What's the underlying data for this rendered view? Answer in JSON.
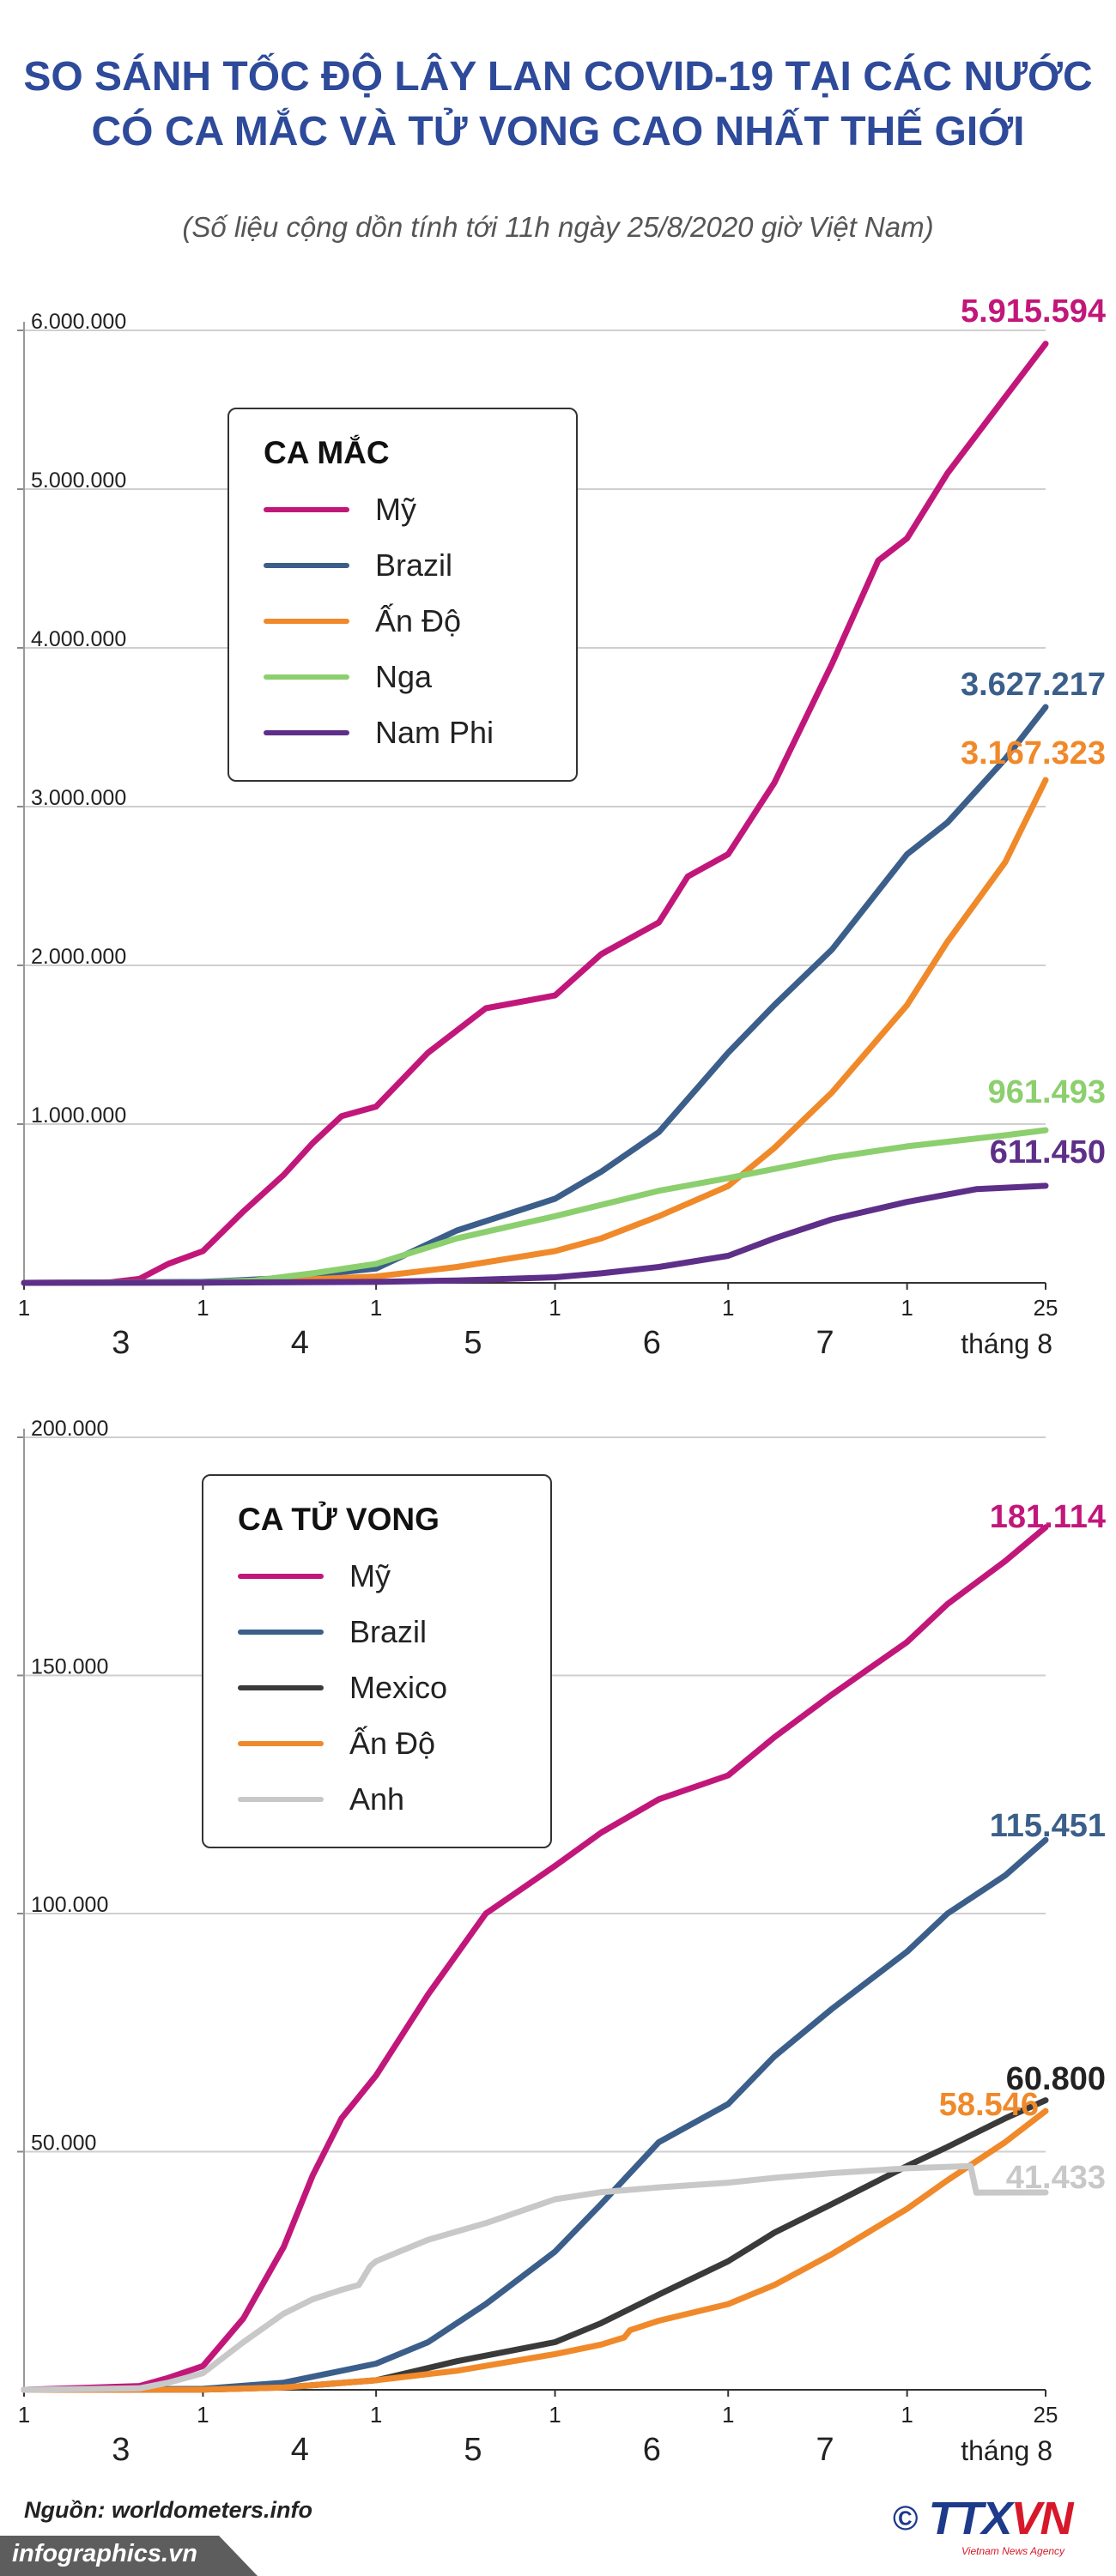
{
  "header": {
    "title_line1": "SO SÁNH TỐC ĐỘ LÂY LAN COVID-19 TẠI CÁC NƯỚC",
    "title_line2": "CÓ CA MẮC VÀ TỬ VONG CAO NHẤT THẾ GIỚI",
    "subtitle": "(Số liệu cộng dồn tính tới 11h ngày 25/8/2020 giờ Việt Nam)"
  },
  "colors": {
    "us": "#c2177a",
    "brazil": "#3b5f8a",
    "india": "#f0892a",
    "russia": "#8ccf6e",
    "southafrica": "#5e2f89",
    "mexico": "#3a3a3a",
    "uk": "#c8c8c8"
  },
  "chart_data": [
    {
      "type": "line",
      "title": "CA MẮC",
      "ylim": [
        0,
        6000000
      ],
      "yticks": [
        6000000,
        5000000,
        4000000,
        3000000,
        2000000,
        1000000
      ],
      "ytick_labels": [
        "6.000.000",
        "5.000.000",
        "4.000.000",
        "3.000.000",
        "2.000.000",
        "1.000.000"
      ],
      "xlim": [
        0,
        177
      ],
      "xticks_day": [
        0,
        31,
        61,
        92,
        122,
        153,
        177
      ],
      "xticks_day_labels": [
        "1",
        "1",
        "1",
        "1",
        "1",
        "1",
        "25"
      ],
      "xticks_month": [
        15,
        46,
        76,
        107,
        137
      ],
      "month_labels": [
        "3",
        "4",
        "5",
        "6",
        "7"
      ],
      "last_month_label": "tháng 8",
      "series": [
        {
          "name": "Mỹ",
          "key": "us",
          "final_label": "5.915.594",
          "x": [
            0,
            10,
            15,
            20,
            25,
            31,
            38,
            45,
            50,
            55,
            61,
            70,
            80,
            92,
            100,
            110,
            115,
            122,
            130,
            140,
            148,
            153,
            160,
            170,
            177
          ],
          "y": [
            75,
            1000,
            3500,
            25000,
            120000,
            200000,
            450000,
            680000,
            880000,
            1050000,
            1110000,
            1450000,
            1730000,
            1810000,
            2070000,
            2270000,
            2560000,
            2700000,
            3150000,
            3900000,
            4550000,
            4690000,
            5100000,
            5580000,
            5915594
          ]
        },
        {
          "name": "Brazil",
          "key": "brazil",
          "final_label": "3.627.217",
          "x": [
            0,
            31,
            45,
            61,
            75,
            92,
            100,
            110,
            122,
            130,
            140,
            153,
            160,
            170,
            177
          ],
          "y": [
            2,
            6000,
            30000,
            90000,
            330000,
            530000,
            700000,
            950000,
            1450000,
            1750000,
            2100000,
            2700000,
            2900000,
            3300000,
            3627217
          ]
        },
        {
          "name": "Ấn Độ",
          "key": "india",
          "final_label": "3.167.323",
          "x": [
            0,
            31,
            45,
            61,
            75,
            92,
            100,
            110,
            122,
            130,
            140,
            153,
            160,
            170,
            177
          ],
          "y": [
            3,
            1800,
            15000,
            40000,
            100000,
            200000,
            280000,
            420000,
            610000,
            850000,
            1200000,
            1750000,
            2150000,
            2650000,
            3167323
          ]
        },
        {
          "name": "Nga",
          "key": "russia",
          "final_label": "961.493",
          "x": [
            0,
            31,
            40,
            50,
            61,
            75,
            92,
            110,
            122,
            140,
            153,
            170,
            177
          ],
          "y": [
            3,
            2500,
            15000,
            60000,
            120000,
            280000,
            420000,
            580000,
            660000,
            790000,
            860000,
            930000,
            961493
          ]
        },
        {
          "name": "Nam Phi",
          "key": "southafrica",
          "final_label": "611.450",
          "x": [
            0,
            31,
            61,
            75,
            92,
            100,
            110,
            122,
            130,
            140,
            153,
            165,
            177
          ],
          "y": [
            0,
            1400,
            5700,
            15000,
            35000,
            60000,
            100000,
            170000,
            280000,
            400000,
            510000,
            590000,
            611450
          ]
        }
      ]
    },
    {
      "type": "line",
      "title": "CA TỬ VONG",
      "ylim": [
        0,
        200000
      ],
      "yticks": [
        200000,
        150000,
        100000,
        50000
      ],
      "ytick_labels": [
        "200.000",
        "150.000",
        "100.000",
        "50.000"
      ],
      "xlim": [
        0,
        177
      ],
      "xticks_day": [
        0,
        31,
        61,
        92,
        122,
        153,
        177
      ],
      "xticks_day_labels": [
        "1",
        "1",
        "1",
        "1",
        "1",
        "1",
        "25"
      ],
      "xticks_month": [
        15,
        46,
        76,
        107,
        137
      ],
      "month_labels": [
        "3",
        "4",
        "5",
        "6",
        "7"
      ],
      "last_month_label": "tháng 8",
      "series": [
        {
          "name": "Mỹ",
          "key": "us",
          "final_label": "181.114",
          "x": [
            0,
            20,
            25,
            31,
            38,
            45,
            50,
            55,
            61,
            70,
            80,
            92,
            100,
            110,
            122,
            130,
            140,
            153,
            160,
            170,
            177
          ],
          "y": [
            1,
            800,
            2500,
            5000,
            15000,
            30000,
            45000,
            57000,
            66000,
            83000,
            100000,
            110000,
            117000,
            124000,
            129000,
            137000,
            146000,
            157000,
            165000,
            174000,
            181114
          ]
        },
        {
          "name": "Brazil",
          "key": "brazil",
          "final_label": "115.451",
          "x": [
            0,
            31,
            45,
            61,
            70,
            80,
            92,
            100,
            110,
            122,
            130,
            140,
            153,
            160,
            170,
            177
          ],
          "y": [
            0,
            200,
            1500,
            5500,
            10000,
            18000,
            29000,
            39000,
            52000,
            60000,
            70000,
            80000,
            92000,
            100000,
            108000,
            115451
          ]
        },
        {
          "name": "Mexico",
          "key": "mexico",
          "final_label": "60.800",
          "x": [
            0,
            31,
            45,
            61,
            75,
            92,
            100,
            110,
            122,
            130,
            140,
            153,
            160,
            170,
            177
          ],
          "y": [
            0,
            30,
            500,
            2000,
            6000,
            10000,
            14000,
            20000,
            27000,
            33000,
            39000,
            47000,
            51000,
            57000,
            60800
          ]
        },
        {
          "name": "Ấn Độ",
          "key": "india",
          "final_label": "58.546",
          "x": [
            0,
            31,
            45,
            61,
            75,
            92,
            100,
            104,
            105,
            110,
            122,
            130,
            140,
            153,
            160,
            170,
            177
          ],
          "y": [
            0,
            40,
            500,
            2000,
            4000,
            7500,
            9500,
            11000,
            12500,
            14500,
            18000,
            22000,
            28500,
            38000,
            44000,
            52000,
            58546
          ]
        },
        {
          "name": "Anh",
          "key": "uk",
          "final_label": "41.433",
          "x": [
            0,
            20,
            25,
            31,
            38,
            45,
            50,
            55,
            58,
            60,
            61,
            65,
            70,
            80,
            92,
            100,
            110,
            122,
            130,
            140,
            153,
            164,
            165,
            177
          ],
          "y": [
            1,
            300,
            1500,
            3500,
            10000,
            16000,
            19000,
            21000,
            22000,
            26000,
            27000,
            29000,
            31500,
            35000,
            40000,
            41500,
            42500,
            43500,
            44500,
            45500,
            46500,
            47000,
            41400,
            41433
          ]
        }
      ]
    }
  ],
  "legend1": {
    "title": "CA MẮC",
    "items": [
      {
        "label": "Mỹ",
        "color": "#c2177a"
      },
      {
        "label": "Brazil",
        "color": "#3b5f8a"
      },
      {
        "label": "Ấn Độ",
        "color": "#f0892a"
      },
      {
        "label": "Nga",
        "color": "#8ccf6e"
      },
      {
        "label": "Nam Phi",
        "color": "#5e2f89"
      }
    ]
  },
  "legend2": {
    "title": "CA TỬ VONG",
    "items": [
      {
        "label": "Mỹ",
        "color": "#c2177a"
      },
      {
        "label": "Brazil",
        "color": "#3b5f8a"
      },
      {
        "label": "Mexico",
        "color": "#3a3a3a"
      },
      {
        "label": "Ấn Độ",
        "color": "#f0892a"
      },
      {
        "label": "Anh",
        "color": "#c8c8c8"
      }
    ]
  },
  "footer": {
    "source": "Nguồn: worldometers.info",
    "brand": "infographics.vn",
    "logo_copyright": "©",
    "logo_text_a": "TTX",
    "logo_text_b": "VN",
    "logo_sub": "Vietnam News Agency"
  }
}
